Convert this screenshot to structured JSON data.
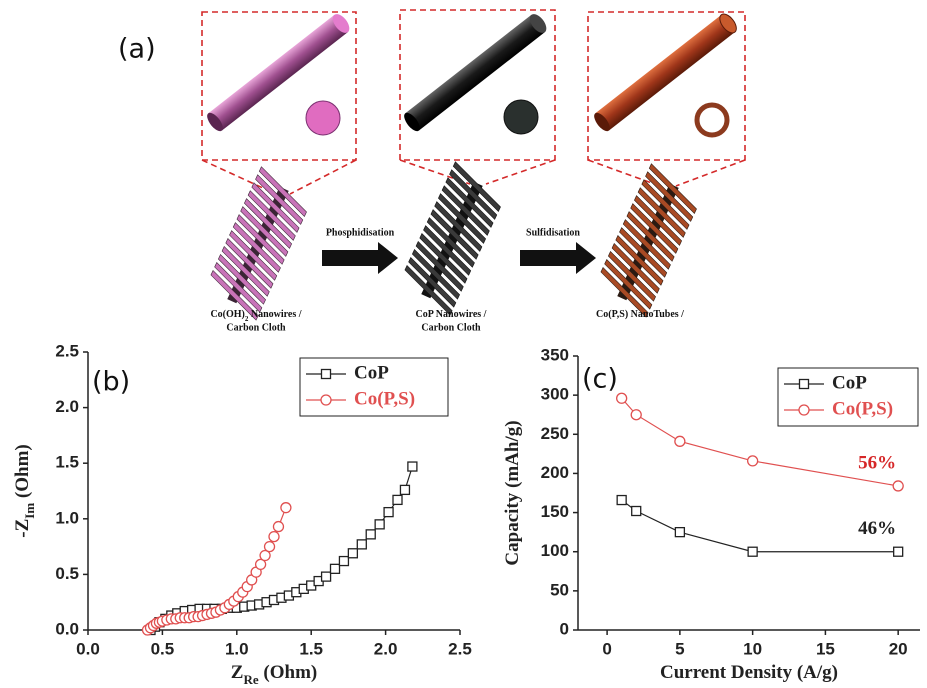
{
  "schematic": {
    "label": "(a)",
    "steps": [
      "Phosphidisation",
      "Sulfidisation"
    ],
    "captions": [
      {
        "line1": [
          "Co(OH)",
          "2",
          " Nanowires /"
        ],
        "line2": "Carbon Cloth"
      },
      {
        "line1": [
          "CoP Nanowires /"
        ],
        "line2": "Carbon Cloth"
      },
      {
        "line1": [
          "Co(P,S) NanoTubes /"
        ]
      }
    ]
  },
  "chart_data": [
    {
      "type": "line",
      "panel_label": "(b)",
      "x_label": [
        "Z",
        "Re",
        " (Ohm)"
      ],
      "y_label": [
        "-Z",
        "Im",
        " (Ohm)"
      ],
      "xlim": [
        0,
        2.5
      ],
      "ylim": [
        0,
        2.5
      ],
      "xticks": [
        {
          "value": 0,
          "label": "0.0"
        },
        {
          "value": 0.5,
          "label": "0.5"
        },
        {
          "value": 1,
          "label": "1.0"
        },
        {
          "value": 1.5,
          "label": "1.5"
        },
        {
          "value": 2,
          "label": "2.0"
        },
        {
          "value": 2.5,
          "label": "2.5"
        }
      ],
      "yticks": [
        {
          "value": 0,
          "label": "0.0"
        },
        {
          "value": 0.5,
          "label": "0.5"
        },
        {
          "value": 1,
          "label": "1.0"
        },
        {
          "value": 1.5,
          "label": "1.5"
        },
        {
          "value": 2,
          "label": "2.0"
        },
        {
          "value": 2.5,
          "label": "2.5"
        }
      ],
      "legend": "upper right",
      "series": [
        {
          "name": "CoP",
          "color": "#222222",
          "marker": "square",
          "x": [
            0.42,
            0.45,
            0.48,
            0.52,
            0.56,
            0.6,
            0.65,
            0.7,
            0.75,
            0.8,
            0.85,
            0.9,
            0.95,
            1.0,
            1.05,
            1.1,
            1.15,
            1.2,
            1.25,
            1.3,
            1.35,
            1.4,
            1.45,
            1.5,
            1.55,
            1.6,
            1.66,
            1.72,
            1.78,
            1.84,
            1.9,
            1.96,
            2.02,
            2.08,
            2.13,
            2.18
          ],
          "values": [
            0.0,
            0.03,
            0.07,
            0.1,
            0.13,
            0.15,
            0.17,
            0.18,
            0.19,
            0.19,
            0.19,
            0.19,
            0.2,
            0.2,
            0.21,
            0.22,
            0.23,
            0.25,
            0.27,
            0.29,
            0.31,
            0.34,
            0.37,
            0.4,
            0.44,
            0.48,
            0.55,
            0.62,
            0.69,
            0.77,
            0.86,
            0.95,
            1.06,
            1.17,
            1.26,
            1.47
          ]
        },
        {
          "name": "Co(P,S)",
          "color": "#e05050",
          "marker": "circle",
          "x": [
            0.4,
            0.42,
            0.44,
            0.46,
            0.48,
            0.5,
            0.53,
            0.56,
            0.59,
            0.62,
            0.65,
            0.68,
            0.71,
            0.74,
            0.77,
            0.8,
            0.83,
            0.86,
            0.89,
            0.92,
            0.95,
            0.98,
            1.01,
            1.04,
            1.07,
            1.1,
            1.13,
            1.16,
            1.19,
            1.22,
            1.25,
            1.28,
            1.33
          ],
          "values": [
            0.0,
            0.02,
            0.04,
            0.06,
            0.07,
            0.08,
            0.09,
            0.1,
            0.1,
            0.11,
            0.11,
            0.11,
            0.12,
            0.12,
            0.13,
            0.14,
            0.15,
            0.16,
            0.18,
            0.2,
            0.23,
            0.26,
            0.3,
            0.34,
            0.39,
            0.45,
            0.52,
            0.59,
            0.67,
            0.75,
            0.84,
            0.93,
            1.1
          ]
        }
      ]
    },
    {
      "type": "line",
      "panel_label": "(c)",
      "x_label": [
        "Current Density (A/g)"
      ],
      "y_label": [
        "Capacity (mAh/g)"
      ],
      "xlim": [
        -2,
        21.5
      ],
      "ylim": [
        0,
        350
      ],
      "xticks": [
        0,
        5,
        10,
        15,
        20
      ],
      "yticks": [
        0,
        50,
        100,
        150,
        200,
        250,
        300,
        350
      ],
      "legend": "upper right",
      "series": [
        {
          "name": "CoP",
          "color": "#222222",
          "marker": "square",
          "x": [
            1,
            2,
            5,
            10,
            20
          ],
          "values": [
            166,
            152,
            125,
            100,
            100
          ]
        },
        {
          "name": "Co(P,S)",
          "color": "#e05050",
          "marker": "circle",
          "x": [
            1,
            2,
            5,
            10,
            20
          ],
          "values": [
            296,
            275,
            241,
            216,
            184
          ]
        }
      ],
      "annotations": [
        {
          "text": "46%",
          "color": "#222222"
        },
        {
          "text": "56%",
          "color": "#d62728"
        }
      ]
    }
  ]
}
